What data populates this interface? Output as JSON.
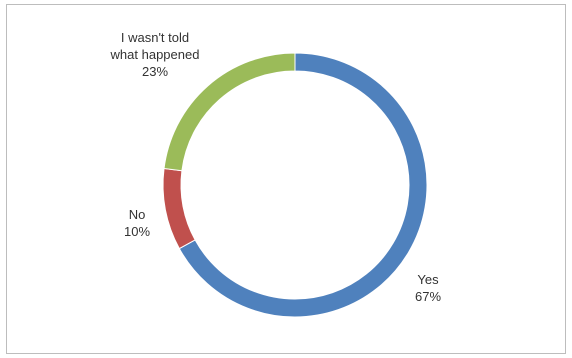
{
  "chart_data": {
    "type": "pie",
    "style": "donut",
    "title": "",
    "legend": "none",
    "categories": [
      "Yes",
      "No",
      "I wasn't told what happened"
    ],
    "label_lines": [
      [
        "Yes"
      ],
      [
        "No"
      ],
      [
        "I wasn't told",
        "what happened"
      ]
    ],
    "values": [
      67,
      10,
      23
    ],
    "value_labels": [
      "67%",
      "10%",
      "23%"
    ],
    "colors": [
      "#4f81bd",
      "#c0504d",
      "#9bbb59"
    ]
  }
}
